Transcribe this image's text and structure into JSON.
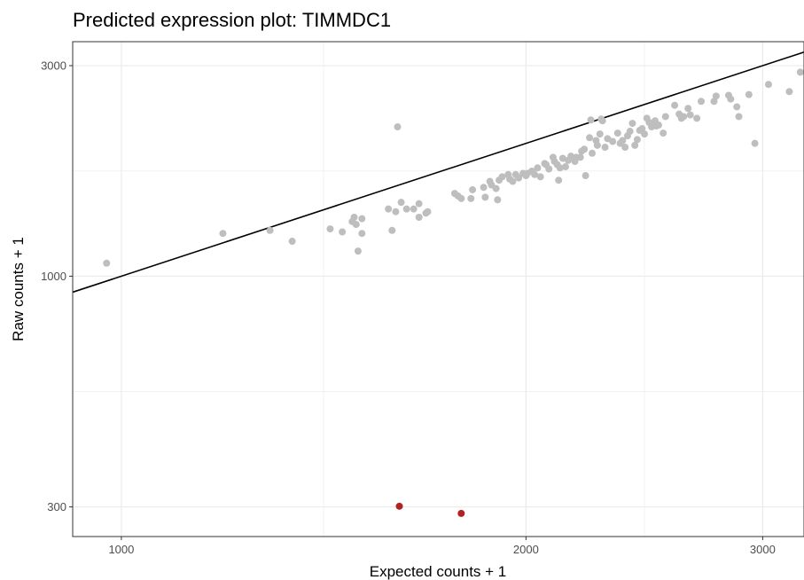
{
  "chart_data": {
    "type": "scatter",
    "title": "Predicted expression plot: TIMMDC1",
    "xlabel": "Expected counts + 1",
    "ylabel": "Raw counts + 1",
    "x_scale": "log",
    "y_scale": "log",
    "xlim": [
      920,
      3220
    ],
    "ylim": [
      257,
      3400
    ],
    "x_ticks": [
      1000,
      2000,
      3000
    ],
    "y_ticks": [
      300,
      1000,
      3000
    ],
    "grid": true,
    "fit_line": {
      "slope": 1,
      "intercept": 0
    },
    "colors": {
      "normal": "#bebebe",
      "outlier": "#b22222",
      "line": "#000000"
    },
    "series": [
      {
        "name": "",
        "color": "#bebebe",
        "points": [
          [
            975,
            1070
          ],
          [
            1190,
            1250
          ],
          [
            1290,
            1270
          ],
          [
            1340,
            1200
          ],
          [
            1430,
            1280
          ],
          [
            1460,
            1260
          ],
          [
            1485,
            1330
          ],
          [
            1490,
            1360
          ],
          [
            1495,
            1310
          ],
          [
            1500,
            1140
          ],
          [
            1510,
            1250
          ],
          [
            1510,
            1350
          ],
          [
            1580,
            1420
          ],
          [
            1590,
            1270
          ],
          [
            1600,
            1400
          ],
          [
            1605,
            2180
          ],
          [
            1615,
            1470
          ],
          [
            1630,
            1420
          ],
          [
            1650,
            1420
          ],
          [
            1665,
            1460
          ],
          [
            1665,
            1360
          ],
          [
            1685,
            1390
          ],
          [
            1690,
            1400
          ],
          [
            1770,
            1540
          ],
          [
            1780,
            1520
          ],
          [
            1790,
            1500
          ],
          [
            1820,
            1500
          ],
          [
            1825,
            1570
          ],
          [
            1860,
            1590
          ],
          [
            1865,
            1510
          ],
          [
            1880,
            1640
          ],
          [
            1885,
            1610
          ],
          [
            1900,
            1580
          ],
          [
            1905,
            1490
          ],
          [
            1910,
            1650
          ],
          [
            1920,
            1680
          ],
          [
            1940,
            1700
          ],
          [
            1945,
            1660
          ],
          [
            1955,
            1640
          ],
          [
            1965,
            1700
          ],
          [
            1975,
            1670
          ],
          [
            1990,
            1710
          ],
          [
            2000,
            1690
          ],
          [
            2005,
            1710
          ],
          [
            2020,
            1730
          ],
          [
            2030,
            1700
          ],
          [
            2040,
            1760
          ],
          [
            2050,
            1680
          ],
          [
            2065,
            1800
          ],
          [
            2070,
            1790
          ],
          [
            2080,
            1750
          ],
          [
            2095,
            1860
          ],
          [
            2100,
            1820
          ],
          [
            2110,
            1790
          ],
          [
            2115,
            1650
          ],
          [
            2120,
            1760
          ],
          [
            2130,
            1850
          ],
          [
            2140,
            1770
          ],
          [
            2150,
            1830
          ],
          [
            2160,
            1870
          ],
          [
            2175,
            1820
          ],
          [
            2180,
            1860
          ],
          [
            2195,
            1860
          ],
          [
            2200,
            1920
          ],
          [
            2210,
            1940
          ],
          [
            2215,
            1690
          ],
          [
            2230,
            2060
          ],
          [
            2235,
            2260
          ],
          [
            2240,
            1900
          ],
          [
            2255,
            2030
          ],
          [
            2260,
            1980
          ],
          [
            2270,
            2100
          ],
          [
            2275,
            2270
          ],
          [
            2280,
            2250
          ],
          [
            2290,
            1960
          ],
          [
            2300,
            2050
          ],
          [
            2320,
            2020
          ],
          [
            2340,
            2110
          ],
          [
            2350,
            2000
          ],
          [
            2360,
            2030
          ],
          [
            2370,
            1960
          ],
          [
            2380,
            2080
          ],
          [
            2390,
            2130
          ],
          [
            2400,
            2220
          ],
          [
            2410,
            1980
          ],
          [
            2420,
            2040
          ],
          [
            2430,
            2140
          ],
          [
            2440,
            2160
          ],
          [
            2450,
            2100
          ],
          [
            2460,
            2280
          ],
          [
            2470,
            2230
          ],
          [
            2480,
            2180
          ],
          [
            2495,
            2250
          ],
          [
            2500,
            2190
          ],
          [
            2510,
            2200
          ],
          [
            2530,
            2110
          ],
          [
            2540,
            2300
          ],
          [
            2580,
            2440
          ],
          [
            2600,
            2330
          ],
          [
            2610,
            2280
          ],
          [
            2620,
            2300
          ],
          [
            2640,
            2400
          ],
          [
            2650,
            2320
          ],
          [
            2680,
            2280
          ],
          [
            2700,
            2490
          ],
          [
            2760,
            2490
          ],
          [
            2770,
            2560
          ],
          [
            2830,
            2570
          ],
          [
            2840,
            2520
          ],
          [
            2870,
            2420
          ],
          [
            2880,
            2300
          ],
          [
            2930,
            2580
          ],
          [
            2960,
            2000
          ],
          [
            3030,
            2720
          ],
          [
            3140,
            2620
          ],
          [
            3200,
            2900
          ],
          [
            3240,
            3150
          ]
        ]
      },
      {
        "name": "",
        "color": "#b22222",
        "points": [
          [
            1610,
            301
          ],
          [
            1790,
            290
          ]
        ]
      }
    ]
  }
}
